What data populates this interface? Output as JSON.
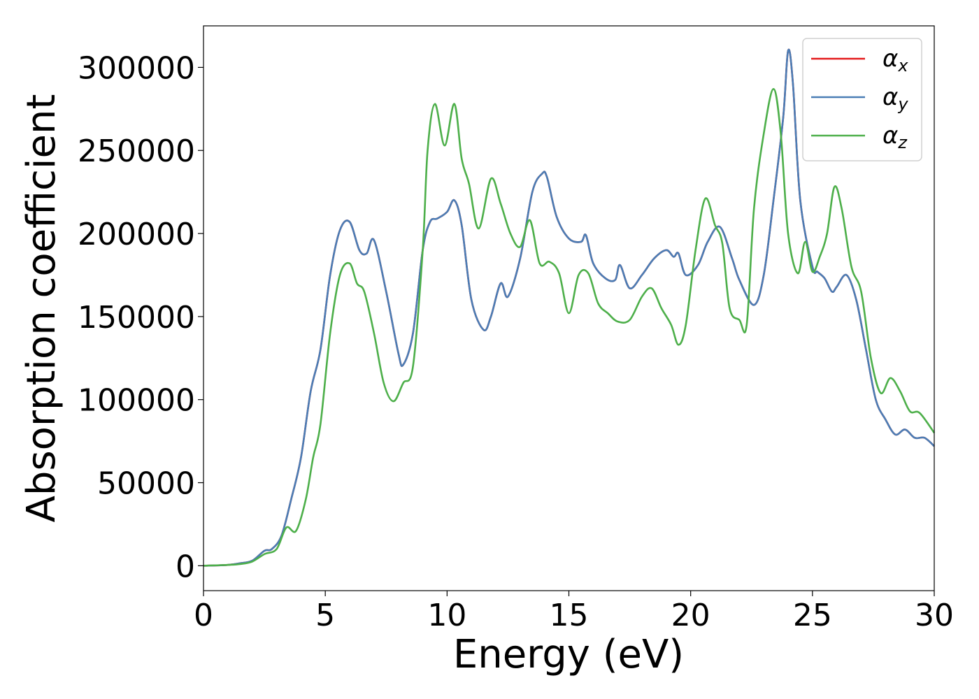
{
  "chart_data": {
    "type": "line",
    "xlabel": "Energy (eV)",
    "ylabel": "Absorption coefficient",
    "xlim": [
      0,
      30
    ],
    "ylim": [
      -15000,
      325000
    ],
    "xticks": [
      0,
      5,
      10,
      15,
      20,
      25,
      30
    ],
    "xtick_labels": [
      "0",
      "5",
      "10",
      "15",
      "20",
      "25",
      "30"
    ],
    "yticks": [
      0,
      50000,
      100000,
      150000,
      200000,
      250000,
      300000
    ],
    "ytick_labels": [
      "0",
      "50000",
      "100000",
      "150000",
      "200000",
      "250000",
      "300000"
    ],
    "grid": false,
    "legend_position": "top-right",
    "series": [
      {
        "name": "αx",
        "legend_base": "α",
        "legend_sub": "x",
        "color": "#e41a1c",
        "x": [
          0,
          1,
          1.5,
          2,
          2.5,
          2.8,
          3.2,
          3.6,
          4,
          4.4,
          4.8,
          5.2,
          5.6,
          6,
          6.4,
          6.7,
          7,
          7.5,
          8,
          8.2,
          8.6,
          9,
          9.3,
          9.6,
          10,
          10.3,
          10.6,
          11,
          11.5,
          11.8,
          12.2,
          12.5,
          13,
          13.5,
          13.9,
          14.1,
          14.5,
          15,
          15.5,
          15.7,
          16,
          16.5,
          16.9,
          17.1,
          17.5,
          18,
          18.5,
          19,
          19.3,
          19.5,
          19.8,
          20.3,
          20.7,
          21.2,
          21.7,
          22,
          22.6,
          23,
          23.4,
          23.8,
          24,
          24.2,
          24.5,
          25,
          25.2,
          25.5,
          25.8,
          26,
          26.4,
          26.8,
          27.2,
          27.6,
          28,
          28.4,
          28.8,
          29.2,
          29.6,
          30
        ],
        "y": [
          0,
          500,
          1500,
          3000,
          9000,
          10000,
          18000,
          40000,
          65000,
          105000,
          130000,
          175000,
          202000,
          207000,
          190000,
          188000,
          196000,
          165000,
          128000,
          121000,
          140000,
          190000,
          207000,
          209000,
          213000,
          220000,
          205000,
          160000,
          142000,
          150000,
          170000,
          162000,
          185000,
          225000,
          236000,
          234000,
          210000,
          197000,
          195000,
          199000,
          182000,
          173000,
          172000,
          181000,
          167000,
          175000,
          185000,
          190000,
          186000,
          188000,
          175000,
          181000,
          195000,
          204000,
          185000,
          172000,
          157000,
          175000,
          220000,
          270000,
          310000,
          290000,
          220000,
          180000,
          177000,
          173000,
          165000,
          168000,
          175000,
          160000,
          130000,
          100000,
          88000,
          79000,
          82000,
          77000,
          77000,
          72000
        ]
      },
      {
        "name": "αy",
        "legend_base": "α",
        "legend_sub": "y",
        "color": "#4a7db5",
        "x": [
          0,
          1,
          1.5,
          2,
          2.5,
          2.8,
          3.2,
          3.6,
          4,
          4.4,
          4.8,
          5.2,
          5.6,
          6,
          6.4,
          6.7,
          7,
          7.5,
          8,
          8.2,
          8.6,
          9,
          9.3,
          9.6,
          10,
          10.3,
          10.6,
          11,
          11.5,
          11.8,
          12.2,
          12.5,
          13,
          13.5,
          13.9,
          14.1,
          14.5,
          15,
          15.5,
          15.7,
          16,
          16.5,
          16.9,
          17.1,
          17.5,
          18,
          18.5,
          19,
          19.3,
          19.5,
          19.8,
          20.3,
          20.7,
          21.2,
          21.7,
          22,
          22.6,
          23,
          23.4,
          23.8,
          24,
          24.2,
          24.5,
          25,
          25.2,
          25.5,
          25.8,
          26,
          26.4,
          26.8,
          27.2,
          27.6,
          28,
          28.4,
          28.8,
          29.2,
          29.6,
          30
        ],
        "y": [
          0,
          500,
          1500,
          3000,
          9000,
          10000,
          18000,
          40000,
          65000,
          105000,
          130000,
          175000,
          202000,
          207000,
          190000,
          188000,
          196000,
          165000,
          128000,
          121000,
          140000,
          190000,
          207000,
          209000,
          213000,
          220000,
          205000,
          160000,
          142000,
          150000,
          170000,
          162000,
          185000,
          225000,
          236000,
          234000,
          210000,
          197000,
          195000,
          199000,
          182000,
          173000,
          172000,
          181000,
          167000,
          175000,
          185000,
          190000,
          186000,
          188000,
          175000,
          181000,
          195000,
          204000,
          185000,
          172000,
          157000,
          175000,
          220000,
          270000,
          310000,
          290000,
          220000,
          180000,
          177000,
          173000,
          165000,
          168000,
          175000,
          160000,
          130000,
          100000,
          88000,
          79000,
          82000,
          77000,
          77000,
          72000
        ]
      },
      {
        "name": "αz",
        "legend_base": "α",
        "legend_sub": "z",
        "color": "#4daf4a",
        "x": [
          0,
          1,
          1.5,
          2,
          2.5,
          3,
          3.4,
          3.8,
          4.2,
          4.5,
          4.8,
          5.2,
          5.6,
          6,
          6.3,
          6.6,
          7,
          7.4,
          7.8,
          8.2,
          8.6,
          9,
          9.2,
          9.5,
          9.9,
          10.3,
          10.6,
          10.9,
          11.3,
          11.8,
          12.2,
          12.6,
          13,
          13.4,
          13.8,
          14.2,
          14.6,
          15,
          15.4,
          15.8,
          16.2,
          16.6,
          17,
          17.5,
          18,
          18.4,
          18.8,
          19.2,
          19.5,
          19.8,
          20.2,
          20.6,
          21,
          21.3,
          21.6,
          22,
          22.3,
          22.6,
          23,
          23.4,
          23.7,
          24,
          24.4,
          24.7,
          25,
          25.3,
          25.6,
          25.9,
          26.2,
          26.6,
          27,
          27.4,
          27.8,
          28.2,
          28.6,
          29,
          29.4,
          30
        ],
        "y": [
          0,
          500,
          1000,
          2500,
          7000,
          10000,
          23000,
          21000,
          40000,
          65000,
          85000,
          140000,
          175000,
          182000,
          170000,
          165000,
          140000,
          110000,
          99000,
          110000,
          120000,
          190000,
          250000,
          278000,
          253000,
          278000,
          245000,
          230000,
          203000,
          233000,
          218000,
          200000,
          192000,
          208000,
          182000,
          183000,
          176000,
          152000,
          175000,
          176000,
          158000,
          152000,
          147000,
          148000,
          162000,
          167000,
          155000,
          145000,
          133000,
          145000,
          190000,
          221000,
          205000,
          194000,
          155000,
          148000,
          145000,
          215000,
          260000,
          287000,
          260000,
          200000,
          176000,
          195000,
          177000,
          186000,
          200000,
          228000,
          215000,
          180000,
          165000,
          125000,
          104000,
          113000,
          105000,
          93000,
          92000,
          80000
        ]
      }
    ]
  }
}
